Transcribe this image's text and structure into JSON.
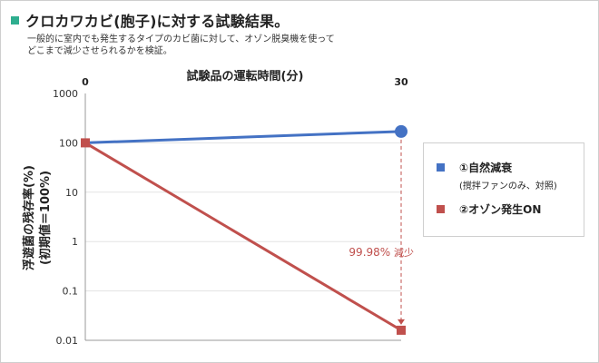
{
  "header": {
    "title": "クロカワカビ(胞子)に対する試験結果。",
    "description": [
      "一般的に室内でも発生するタイプのカビ菌に対して、オゾン脱臭機を使って",
      "どこまで減少させられるかを検証。"
    ]
  },
  "colors": {
    "accent": "#2fae8f",
    "blue": "#4472c4",
    "red": "#c0504d"
  },
  "chart_data": {
    "type": "line",
    "title": "",
    "xlabel": "試験品の運転時間(分)",
    "ylabel": [
      "浮遊菌の残存率(%)",
      "(初期値＝100%)"
    ],
    "y_scale": "log",
    "x_ticks": [
      "0",
      "30"
    ],
    "y_ticks": [
      "1000",
      "100",
      "10",
      "1",
      "0.1",
      "0.01"
    ],
    "x": [
      0,
      30
    ],
    "xlim": [
      0,
      30
    ],
    "ylim": [
      0.01,
      1000
    ],
    "series": [
      {
        "name": "①自然減衰",
        "sub": "(撹拌ファンのみ、対照)",
        "values": [
          100,
          170
        ],
        "color": "#4472c4",
        "marker": "circle"
      },
      {
        "name": "②オゾン発生ON",
        "sub": "",
        "values": [
          100,
          0.016
        ],
        "color": "#c0504d",
        "marker": "square"
      }
    ],
    "annotation": {
      "value": "99.98%",
      "text": "減少"
    },
    "legend": "right"
  }
}
